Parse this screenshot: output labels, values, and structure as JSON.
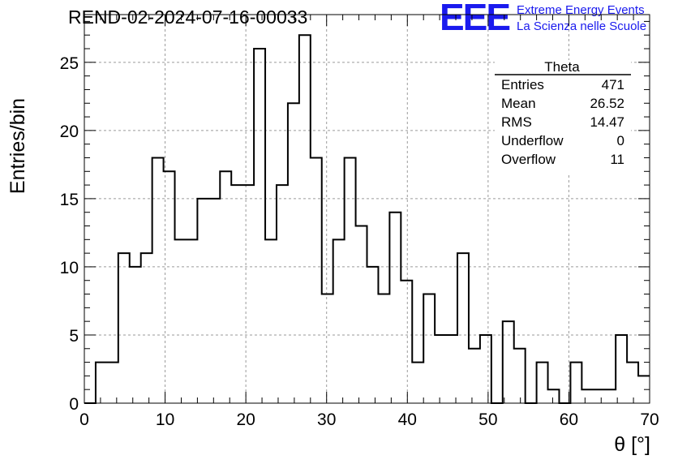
{
  "header": {
    "run_title": "REND-02-2024-07-16-00033",
    "logo_text": "EEE",
    "logo_line1": "Extreme Energy Events",
    "logo_line2": "La Scienza nelle Scuole",
    "logo_color": "#1a1aee"
  },
  "stats_box": {
    "title": "Theta",
    "rows": [
      {
        "label": "Entries",
        "value": "471"
      },
      {
        "label": "Mean",
        "value": "26.52"
      },
      {
        "label": "RMS",
        "value": "14.47"
      },
      {
        "label": "Underflow",
        "value": "0"
      },
      {
        "label": "Overflow",
        "value": "11"
      }
    ]
  },
  "chart_data": {
    "type": "bar",
    "histogram": true,
    "bin_width": 1.4,
    "bin_start": 0,
    "values": [
      0,
      3,
      3,
      11,
      10,
      11,
      18,
      17,
      12,
      12,
      15,
      15,
      17,
      16,
      16,
      26,
      12,
      16,
      22,
      27,
      18,
      8,
      12,
      18,
      13,
      10,
      8,
      14,
      9,
      3,
      8,
      5,
      5,
      11,
      4,
      5,
      0,
      6,
      4,
      0,
      3,
      1,
      0,
      3,
      1,
      1,
      1,
      5,
      3,
      2
    ],
    "xlabel": "θ [°]",
    "ylabel": "Entries/bin",
    "xlim": [
      0,
      70
    ],
    "ylim": [
      0,
      28.5
    ],
    "xticks": [
      0,
      10,
      20,
      30,
      40,
      50,
      60,
      70
    ],
    "yticks": [
      0,
      5,
      10,
      15,
      20,
      25
    ],
    "grid": true,
    "line_color": "#000000",
    "grid_color": "#9a9a9a"
  }
}
